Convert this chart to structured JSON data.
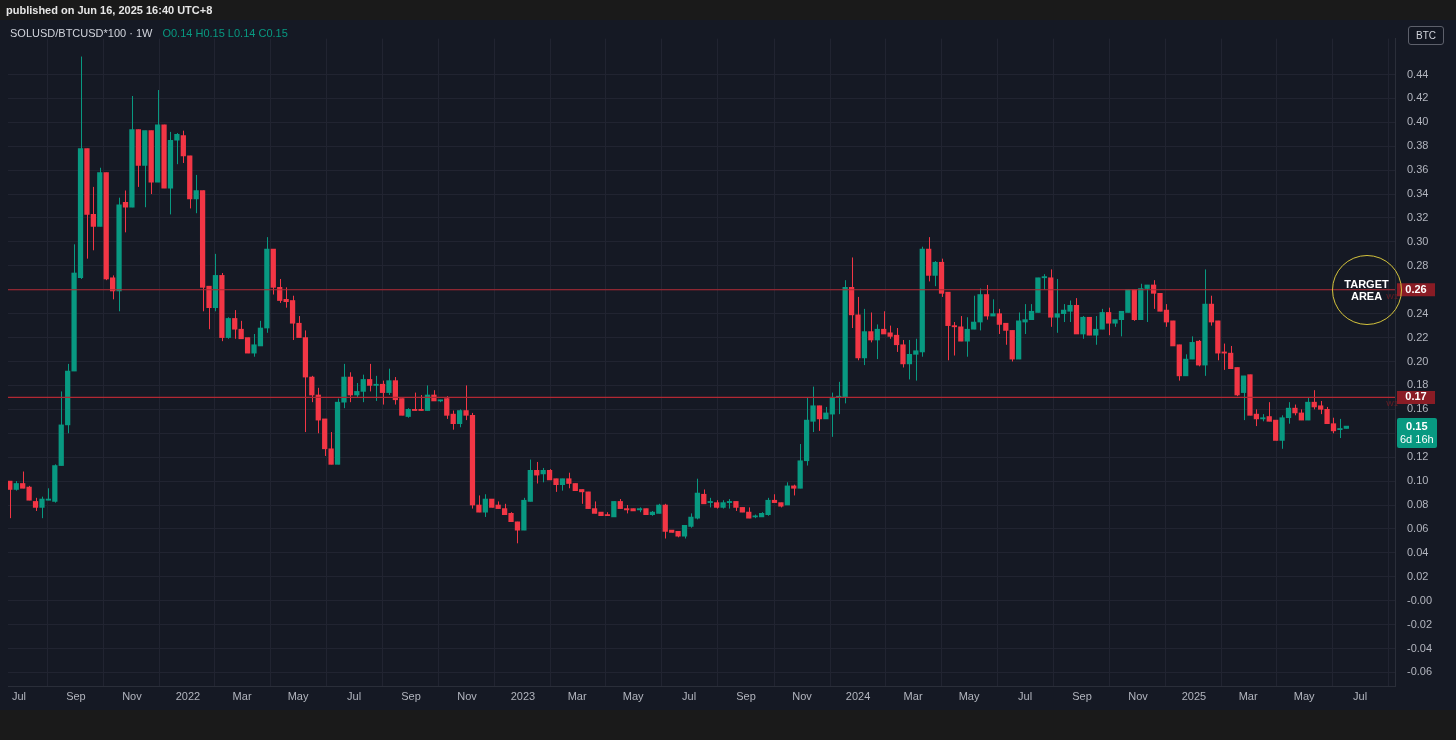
{
  "chart_data": {
    "type": "candlestick",
    "title": "SOLUSD/BTCUSD*100 · 1W",
    "subtitle": "O0.14 H0.15 L0.14 C0.15",
    "annotations": [
      "published on Jun 16, 2025 16:40 UTC+8",
      "BTC",
      "0.15",
      "6d 16h",
      {
        "text": "TARGET AREA",
        "x": "2025-07-08",
        "y": 0.26
      },
      {
        "text": "W1",
        "x": "2025-08-05",
        "y": 0.26
      },
      {
        "text": "W1",
        "x": "2025-08-05",
        "y": 0.17
      }
    ],
    "x": [
      "2021-06-21",
      "2021-06-28",
      "2021-07-05",
      "2021-07-12",
      "2021-07-19",
      "2021-07-26",
      "2021-08-02",
      "2021-08-09",
      "2021-08-16",
      "2021-08-23",
      "2021-08-30",
      "2021-09-06",
      "2021-09-13",
      "2021-09-20",
      "2021-09-27",
      "2021-10-04",
      "2021-10-11",
      "2021-10-18",
      "2021-10-25",
      "2021-11-01",
      "2021-11-08",
      "2021-11-15",
      "2021-11-22",
      "2021-11-29",
      "2021-12-06",
      "2021-12-13",
      "2021-12-20",
      "2021-12-27",
      "2022-01-03",
      "2022-01-10",
      "2022-01-17",
      "2022-01-24",
      "2022-01-31",
      "2022-02-07",
      "2022-02-14",
      "2022-02-21",
      "2022-02-28",
      "2022-03-07",
      "2022-03-14",
      "2022-03-21",
      "2022-03-28",
      "2022-04-04",
      "2022-04-11",
      "2022-04-18",
      "2022-04-25",
      "2022-05-02",
      "2022-05-09",
      "2022-05-16",
      "2022-05-23",
      "2022-05-30",
      "2022-06-06",
      "2022-06-13",
      "2022-06-20",
      "2022-06-27",
      "2022-07-04",
      "2022-07-11",
      "2022-07-18",
      "2022-07-25",
      "2022-08-01",
      "2022-08-08",
      "2022-08-15",
      "2022-08-22",
      "2022-08-29",
      "2022-09-05",
      "2022-09-12",
      "2022-09-19",
      "2022-09-26",
      "2022-10-03",
      "2022-10-10",
      "2022-10-17",
      "2022-10-24",
      "2022-10-31",
      "2022-11-07",
      "2022-11-14",
      "2022-11-21",
      "2022-11-28",
      "2022-12-05",
      "2022-12-12",
      "2022-12-19",
      "2022-12-26",
      "2023-01-02",
      "2023-01-09",
      "2023-01-16",
      "2023-01-23",
      "2023-01-30",
      "2023-02-06",
      "2023-02-13",
      "2023-02-20",
      "2023-02-27",
      "2023-03-06",
      "2023-03-13",
      "2023-03-20",
      "2023-03-27",
      "2023-04-03",
      "2023-04-10",
      "2023-04-17",
      "2023-04-24",
      "2023-05-01",
      "2023-05-08",
      "2023-05-15",
      "2023-05-22",
      "2023-05-29",
      "2023-06-05",
      "2023-06-12",
      "2023-06-19",
      "2023-06-26",
      "2023-07-03",
      "2023-07-10",
      "2023-07-17",
      "2023-07-24",
      "2023-07-31",
      "2023-08-07",
      "2023-08-14",
      "2023-08-21",
      "2023-08-28",
      "2023-09-04",
      "2023-09-11",
      "2023-09-18",
      "2023-09-25",
      "2023-10-02",
      "2023-10-09",
      "2023-10-16",
      "2023-10-23",
      "2023-10-30",
      "2023-11-06",
      "2023-11-13",
      "2023-11-20",
      "2023-11-27",
      "2023-12-04",
      "2023-12-11",
      "2023-12-18",
      "2023-12-25",
      "2024-01-01",
      "2024-01-08",
      "2024-01-15",
      "2024-01-22",
      "2024-01-29",
      "2024-02-05",
      "2024-02-12",
      "2024-02-19",
      "2024-02-26",
      "2024-03-04",
      "2024-03-11",
      "2024-03-18",
      "2024-03-25",
      "2024-04-01",
      "2024-04-08",
      "2024-04-15",
      "2024-04-22",
      "2024-04-29",
      "2024-05-06",
      "2024-05-13",
      "2024-05-20",
      "2024-05-27",
      "2024-06-03",
      "2024-06-10",
      "2024-06-17",
      "2024-06-24",
      "2024-07-01",
      "2024-07-08",
      "2024-07-15",
      "2024-07-22",
      "2024-07-29",
      "2024-08-05",
      "2024-08-12",
      "2024-08-19",
      "2024-08-26",
      "2024-09-02",
      "2024-09-09",
      "2024-09-16",
      "2024-09-23",
      "2024-09-30",
      "2024-10-07",
      "2024-10-14",
      "2024-10-21",
      "2024-10-28",
      "2024-11-04",
      "2024-11-11",
      "2024-11-18",
      "2024-11-25",
      "2024-12-02",
      "2024-12-09",
      "2024-12-16",
      "2024-12-23",
      "2024-12-30",
      "2025-01-06",
      "2025-01-13",
      "2025-01-20",
      "2025-01-27",
      "2025-02-03",
      "2025-02-10",
      "2025-02-17",
      "2025-02-24",
      "2025-03-03",
      "2025-03-10",
      "2025-03-17",
      "2025-03-24",
      "2025-03-31",
      "2025-04-07",
      "2025-04-14",
      "2025-04-21",
      "2025-04-28",
      "2025-05-05",
      "2025-05-12",
      "2025-05-19",
      "2025-05-26",
      "2025-06-02",
      "2025-06-09",
      "2025-06-16"
    ],
    "ohlc": [
      [
        0.1,
        0.1,
        0.069,
        0.093
      ],
      [
        0.093,
        0.1,
        0.092,
        0.098
      ],
      [
        0.098,
        0.108,
        0.094,
        0.094
      ],
      [
        0.095,
        0.096,
        0.084,
        0.084
      ],
      [
        0.083,
        0.086,
        0.075,
        0.078
      ],
      [
        0.078,
        0.087,
        0.069,
        0.085
      ],
      [
        0.084,
        0.094,
        0.084,
        0.085
      ],
      [
        0.083,
        0.114,
        0.082,
        0.113
      ],
      [
        0.113,
        0.175,
        0.113,
        0.147
      ],
      [
        0.147,
        0.198,
        0.14,
        0.192
      ],
      [
        0.192,
        0.298,
        0.192,
        0.274
      ],
      [
        0.27,
        0.455,
        0.269,
        0.378
      ],
      [
        0.378,
        0.378,
        0.286,
        0.323
      ],
      [
        0.323,
        0.346,
        0.293,
        0.313
      ],
      [
        0.313,
        0.362,
        0.313,
        0.358
      ],
      [
        0.358,
        0.358,
        0.268,
        0.269
      ],
      [
        0.27,
        0.272,
        0.252,
        0.259
      ],
      [
        0.259,
        0.337,
        0.242,
        0.331
      ],
      [
        0.333,
        0.343,
        0.308,
        0.329
      ],
      [
        0.329,
        0.422,
        0.329,
        0.394
      ],
      [
        0.394,
        0.394,
        0.346,
        0.364
      ],
      [
        0.364,
        0.393,
        0.329,
        0.393
      ],
      [
        0.393,
        0.393,
        0.34,
        0.35
      ],
      [
        0.35,
        0.427,
        0.35,
        0.398
      ],
      [
        0.398,
        0.398,
        0.345,
        0.345
      ],
      [
        0.345,
        0.392,
        0.323,
        0.385
      ],
      [
        0.385,
        0.391,
        0.365,
        0.39
      ],
      [
        0.389,
        0.393,
        0.366,
        0.372
      ],
      [
        0.372,
        0.372,
        0.328,
        0.336
      ],
      [
        0.336,
        0.356,
        0.324,
        0.343
      ],
      [
        0.343,
        0.343,
        0.242,
        0.262
      ],
      [
        0.263,
        0.263,
        0.227,
        0.245
      ],
      [
        0.245,
        0.29,
        0.242,
        0.272
      ],
      [
        0.272,
        0.274,
        0.217,
        0.22
      ],
      [
        0.22,
        0.237,
        0.219,
        0.236
      ],
      [
        0.236,
        0.243,
        0.219,
        0.227
      ],
      [
        0.227,
        0.234,
        0.219,
        0.219
      ],
      [
        0.22,
        0.22,
        0.207,
        0.207
      ],
      [
        0.207,
        0.223,
        0.204,
        0.214
      ],
      [
        0.213,
        0.234,
        0.213,
        0.228
      ],
      [
        0.228,
        0.304,
        0.224,
        0.294
      ],
      [
        0.294,
        0.294,
        0.256,
        0.262
      ],
      [
        0.262,
        0.269,
        0.249,
        0.251
      ],
      [
        0.252,
        0.262,
        0.245,
        0.25
      ],
      [
        0.251,
        0.255,
        0.218,
        0.232
      ],
      [
        0.232,
        0.238,
        0.22,
        0.22
      ],
      [
        0.22,
        0.226,
        0.141,
        0.187
      ],
      [
        0.187,
        0.188,
        0.166,
        0.172
      ],
      [
        0.172,
        0.178,
        0.14,
        0.151
      ],
      [
        0.152,
        0.152,
        0.121,
        0.127
      ],
      [
        0.127,
        0.141,
        0.114,
        0.114
      ],
      [
        0.114,
        0.169,
        0.114,
        0.166
      ],
      [
        0.166,
        0.198,
        0.161,
        0.187
      ],
      [
        0.187,
        0.191,
        0.166,
        0.172
      ],
      [
        0.172,
        0.182,
        0.17,
        0.175
      ],
      [
        0.175,
        0.189,
        0.166,
        0.185
      ],
      [
        0.185,
        0.198,
        0.175,
        0.18
      ],
      [
        0.18,
        0.188,
        0.167,
        0.181
      ],
      [
        0.181,
        0.184,
        0.164,
        0.174
      ],
      [
        0.174,
        0.194,
        0.172,
        0.184
      ],
      [
        0.184,
        0.187,
        0.164,
        0.168
      ],
      [
        0.169,
        0.169,
        0.155,
        0.155
      ],
      [
        0.154,
        0.161,
        0.153,
        0.16
      ],
      [
        0.16,
        0.174,
        0.159,
        0.159
      ],
      [
        0.16,
        0.172,
        0.159,
        0.159
      ],
      [
        0.159,
        0.18,
        0.159,
        0.172
      ],
      [
        0.172,
        0.176,
        0.167,
        0.167
      ],
      [
        0.167,
        0.168,
        0.166,
        0.168
      ],
      [
        0.169,
        0.171,
        0.152,
        0.155
      ],
      [
        0.156,
        0.159,
        0.143,
        0.148
      ],
      [
        0.148,
        0.16,
        0.145,
        0.159
      ],
      [
        0.159,
        0.18,
        0.151,
        0.155
      ],
      [
        0.155,
        0.157,
        0.077,
        0.08
      ],
      [
        0.08,
        0.088,
        0.074,
        0.074
      ],
      [
        0.074,
        0.089,
        0.07,
        0.085
      ],
      [
        0.085,
        0.085,
        0.078,
        0.078
      ],
      [
        0.08,
        0.083,
        0.077,
        0.077
      ],
      [
        0.077,
        0.081,
        0.072,
        0.072
      ],
      [
        0.073,
        0.074,
        0.066,
        0.066
      ],
      [
        0.066,
        0.066,
        0.048,
        0.059
      ],
      [
        0.059,
        0.086,
        0.059,
        0.084
      ],
      [
        0.083,
        0.118,
        0.083,
        0.109
      ],
      [
        0.109,
        0.116,
        0.098,
        0.105
      ],
      [
        0.106,
        0.111,
        0.099,
        0.109
      ],
      [
        0.109,
        0.11,
        0.101,
        0.101
      ],
      [
        0.102,
        0.102,
        0.091,
        0.097
      ],
      [
        0.097,
        0.102,
        0.092,
        0.102
      ],
      [
        0.102,
        0.107,
        0.094,
        0.098
      ],
      [
        0.098,
        0.098,
        0.092,
        0.092
      ],
      [
        0.093,
        0.093,
        0.081,
        0.091
      ],
      [
        0.091,
        0.091,
        0.077,
        0.077
      ],
      [
        0.077,
        0.083,
        0.073,
        0.073
      ],
      [
        0.074,
        0.074,
        0.071,
        0.071
      ],
      [
        0.072,
        0.074,
        0.071,
        0.071
      ],
      [
        0.07,
        0.083,
        0.07,
        0.083
      ],
      [
        0.083,
        0.085,
        0.077,
        0.077
      ],
      [
        0.077,
        0.08,
        0.073,
        0.076
      ],
      [
        0.077,
        0.077,
        0.075,
        0.075
      ],
      [
        0.076,
        0.078,
        0.074,
        0.077
      ],
      [
        0.077,
        0.077,
        0.072,
        0.072
      ],
      [
        0.072,
        0.075,
        0.071,
        0.074
      ],
      [
        0.073,
        0.081,
        0.073,
        0.08
      ],
      [
        0.08,
        0.081,
        0.052,
        0.058
      ],
      [
        0.059,
        0.059,
        0.057,
        0.057
      ],
      [
        0.058,
        0.058,
        0.053,
        0.054
      ],
      [
        0.054,
        0.063,
        0.052,
        0.063
      ],
      [
        0.062,
        0.073,
        0.061,
        0.07
      ],
      [
        0.069,
        0.102,
        0.068,
        0.09
      ],
      [
        0.089,
        0.093,
        0.081,
        0.081
      ],
      [
        0.082,
        0.086,
        0.078,
        0.083
      ],
      [
        0.082,
        0.084,
        0.077,
        0.078
      ],
      [
        0.078,
        0.084,
        0.077,
        0.082
      ],
      [
        0.082,
        0.085,
        0.077,
        0.083
      ],
      [
        0.083,
        0.083,
        0.075,
        0.078
      ],
      [
        0.078,
        0.078,
        0.074,
        0.074
      ],
      [
        0.074,
        0.078,
        0.069,
        0.069
      ],
      [
        0.07,
        0.072,
        0.069,
        0.071
      ],
      [
        0.07,
        0.074,
        0.07,
        0.073
      ],
      [
        0.072,
        0.086,
        0.071,
        0.084
      ],
      [
        0.084,
        0.089,
        0.082,
        0.082
      ],
      [
        0.082,
        0.082,
        0.078,
        0.079
      ],
      [
        0.08,
        0.099,
        0.08,
        0.096
      ],
      [
        0.096,
        0.097,
        0.088,
        0.094
      ],
      [
        0.094,
        0.131,
        0.094,
        0.117
      ],
      [
        0.117,
        0.17,
        0.113,
        0.151
      ],
      [
        0.15,
        0.179,
        0.141,
        0.163
      ],
      [
        0.163,
        0.163,
        0.142,
        0.152
      ],
      [
        0.152,
        0.162,
        0.152,
        0.157
      ],
      [
        0.156,
        0.174,
        0.137,
        0.17
      ],
      [
        0.17,
        0.183,
        0.156,
        0.171
      ],
      [
        0.17,
        0.268,
        0.165,
        0.262
      ],
      [
        0.262,
        0.287,
        0.228,
        0.239
      ],
      [
        0.239,
        0.254,
        0.201,
        0.203
      ],
      [
        0.203,
        0.244,
        0.197,
        0.225
      ],
      [
        0.225,
        0.241,
        0.216,
        0.218
      ],
      [
        0.218,
        0.231,
        0.202,
        0.227
      ],
      [
        0.227,
        0.242,
        0.223,
        0.223
      ],
      [
        0.224,
        0.23,
        0.219,
        0.221
      ],
      [
        0.222,
        0.228,
        0.208,
        0.214
      ],
      [
        0.214,
        0.218,
        0.195,
        0.198
      ],
      [
        0.198,
        0.218,
        0.185,
        0.206
      ],
      [
        0.206,
        0.219,
        0.184,
        0.209
      ],
      [
        0.208,
        0.296,
        0.204,
        0.294
      ],
      [
        0.294,
        0.304,
        0.267,
        0.272
      ],
      [
        0.272,
        0.284,
        0.263,
        0.283
      ],
      [
        0.283,
        0.286,
        0.254,
        0.257
      ],
      [
        0.258,
        0.258,
        0.201,
        0.23
      ],
      [
        0.23,
        0.233,
        0.205,
        0.229
      ],
      [
        0.229,
        0.238,
        0.217,
        0.217
      ],
      [
        0.217,
        0.237,
        0.204,
        0.227
      ],
      [
        0.227,
        0.255,
        0.227,
        0.233
      ],
      [
        0.233,
        0.261,
        0.226,
        0.256
      ],
      [
        0.256,
        0.264,
        0.235,
        0.238
      ],
      [
        0.238,
        0.252,
        0.238,
        0.24
      ],
      [
        0.24,
        0.244,
        0.223,
        0.231
      ],
      [
        0.232,
        0.232,
        0.214,
        0.226
      ],
      [
        0.226,
        0.226,
        0.2,
        0.202
      ],
      [
        0.202,
        0.241,
        0.202,
        0.234
      ],
      [
        0.233,
        0.248,
        0.223,
        0.235
      ],
      [
        0.235,
        0.248,
        0.235,
        0.242
      ],
      [
        0.241,
        0.27,
        0.241,
        0.27
      ],
      [
        0.27,
        0.273,
        0.26,
        0.271
      ],
      [
        0.27,
        0.277,
        0.229,
        0.237
      ],
      [
        0.237,
        0.269,
        0.224,
        0.24
      ],
      [
        0.24,
        0.248,
        0.233,
        0.243
      ],
      [
        0.242,
        0.251,
        0.233,
        0.247
      ],
      [
        0.247,
        0.253,
        0.223,
        0.223
      ],
      [
        0.223,
        0.238,
        0.219,
        0.237
      ],
      [
        0.237,
        0.237,
        0.222,
        0.222
      ],
      [
        0.222,
        0.238,
        0.214,
        0.227
      ],
      [
        0.227,
        0.244,
        0.227,
        0.241
      ],
      [
        0.241,
        0.245,
        0.222,
        0.232
      ],
      [
        0.232,
        0.235,
        0.229,
        0.235
      ],
      [
        0.235,
        0.242,
        0.221,
        0.242
      ],
      [
        0.241,
        0.26,
        0.241,
        0.26
      ],
      [
        0.26,
        0.26,
        0.234,
        0.235
      ],
      [
        0.235,
        0.265,
        0.235,
        0.261
      ],
      [
        0.261,
        0.264,
        0.233,
        0.264
      ],
      [
        0.264,
        0.268,
        0.244,
        0.257
      ],
      [
        0.257,
        0.257,
        0.242,
        0.242
      ],
      [
        0.243,
        0.248,
        0.229,
        0.233
      ],
      [
        0.234,
        0.234,
        0.213,
        0.213
      ],
      [
        0.214,
        0.214,
        0.184,
        0.188
      ],
      [
        0.188,
        0.206,
        0.188,
        0.202
      ],
      [
        0.202,
        0.221,
        0.202,
        0.216
      ],
      [
        0.217,
        0.218,
        0.196,
        0.197
      ],
      [
        0.197,
        0.277,
        0.188,
        0.248
      ],
      [
        0.248,
        0.255,
        0.23,
        0.233
      ],
      [
        0.234,
        0.234,
        0.201,
        0.207
      ],
      [
        0.208,
        0.215,
        0.193,
        0.207
      ],
      [
        0.207,
        0.213,
        0.194,
        0.194
      ],
      [
        0.195,
        0.195,
        0.171,
        0.172
      ],
      [
        0.174,
        0.188,
        0.151,
        0.188
      ],
      [
        0.189,
        0.189,
        0.155,
        0.155
      ],
      [
        0.156,
        0.16,
        0.146,
        0.152
      ],
      [
        0.152,
        0.156,
        0.15,
        0.153
      ],
      [
        0.154,
        0.166,
        0.15,
        0.15
      ],
      [
        0.151,
        0.151,
        0.134,
        0.134
      ],
      [
        0.134,
        0.155,
        0.127,
        0.153
      ],
      [
        0.153,
        0.166,
        0.148,
        0.161
      ],
      [
        0.161,
        0.164,
        0.155,
        0.157
      ],
      [
        0.157,
        0.16,
        0.151,
        0.151
      ],
      [
        0.151,
        0.17,
        0.151,
        0.166
      ],
      [
        0.166,
        0.176,
        0.16,
        0.162
      ],
      [
        0.163,
        0.167,
        0.156,
        0.16
      ],
      [
        0.16,
        0.162,
        0.148,
        0.148
      ],
      [
        0.148,
        0.153,
        0.14,
        0.142
      ],
      [
        0.143,
        0.152,
        0.136,
        0.144
      ],
      [
        0.144,
        0.146,
        0.144,
        0.146
      ]
    ],
    "colors": [
      "#f23645",
      "#089981",
      "#f23645",
      "#f23645",
      "#f23645",
      "#089981",
      "#089981",
      "#089981",
      "#089981",
      "#089981",
      "#089981",
      "#089981",
      "#f23645",
      "#f23645",
      "#089981",
      "#f23645",
      "#f23645",
      "#089981",
      "#f23645",
      "#089981",
      "#f23645",
      "#089981",
      "#f23645",
      "#089981",
      "#f23645",
      "#089981",
      "#089981",
      "#f23645",
      "#f23645",
      "#089981",
      "#f23645",
      "#f23645",
      "#089981",
      "#f23645",
      "#089981",
      "#f23645",
      "#f23645",
      "#f23645",
      "#089981",
      "#089981",
      "#089981",
      "#f23645",
      "#f23645",
      "#f23645",
      "#f23645",
      "#f23645",
      "#f23645",
      "#f23645",
      "#f23645",
      "#f23645",
      "#f23645",
      "#089981",
      "#089981",
      "#f23645",
      "#089981",
      "#089981",
      "#f23645",
      "#089981",
      "#f23645",
      "#089981",
      "#f23645",
      "#f23645",
      "#089981",
      "#f23645",
      "#f23645",
      "#089981",
      "#f23645",
      "#089981",
      "#f23645",
      "#f23645",
      "#089981",
      "#f23645",
      "#f23645",
      "#f23645",
      "#089981",
      "#f23645",
      "#f23645",
      "#f23645",
      "#f23645",
      "#f23645",
      "#089981",
      "#089981",
      "#f23645",
      "#089981",
      "#f23645",
      "#f23645",
      "#089981",
      "#f23645",
      "#f23645",
      "#f23645",
      "#f23645",
      "#f23645",
      "#f23645",
      "#f23645",
      "#089981",
      "#f23645",
      "#f23645",
      "#f23645",
      "#089981",
      "#f23645",
      "#089981",
      "#089981",
      "#f23645",
      "#f23645",
      "#f23645",
      "#089981",
      "#089981",
      "#089981",
      "#f23645",
      "#089981",
      "#f23645",
      "#089981",
      "#089981",
      "#f23645",
      "#f23645",
      "#f23645",
      "#089981",
      "#089981",
      "#089981",
      "#f23645",
      "#f23645",
      "#089981",
      "#f23645",
      "#089981",
      "#089981",
      "#089981",
      "#f23645",
      "#089981",
      "#089981",
      "#089981",
      "#089981",
      "#f23645",
      "#f23645",
      "#089981",
      "#f23645",
      "#089981",
      "#f23645",
      "#f23645",
      "#f23645",
      "#f23645",
      "#089981",
      "#089981",
      "#089981",
      "#f23645",
      "#089981",
      "#f23645",
      "#f23645",
      "#f23645",
      "#f23645",
      "#089981",
      "#089981",
      "#089981",
      "#f23645",
      "#089981",
      "#f23645",
      "#f23645",
      "#f23645",
      "#089981",
      "#089981",
      "#089981",
      "#089981",
      "#089981",
      "#f23645",
      "#089981",
      "#089981",
      "#089981",
      "#f23645",
      "#089981",
      "#f23645",
      "#089981",
      "#089981",
      "#f23645",
      "#089981",
      "#089981",
      "#089981",
      "#f23645",
      "#089981",
      "#089981",
      "#f23645",
      "#f23645",
      "#f23645",
      "#f23645",
      "#f23645",
      "#089981",
      "#089981",
      "#f23645",
      "#089981",
      "#f23645",
      "#f23645",
      "#f23645",
      "#f23645",
      "#f23645",
      "#089981",
      "#f23645",
      "#f23645",
      "#089981",
      "#f23645",
      "#f23645",
      "#089981",
      "#089981",
      "#f23645",
      "#f23645",
      "#089981",
      "#f23645",
      "#f23645",
      "#f23645",
      "#f23645",
      "#089981",
      "#089981"
    ],
    "xlim": [
      "2021-06-19",
      "2025-08-08"
    ],
    "xticks": [
      {
        "value": "2021-07-01",
        "label": "Jul"
      },
      {
        "value": "2021-09-01",
        "label": "Sep"
      },
      {
        "value": "2021-11-01",
        "label": "Nov"
      },
      {
        "value": "2022-01-01",
        "label": "2022"
      },
      {
        "value": "2022-03-01",
        "label": "Mar"
      },
      {
        "value": "2022-05-01",
        "label": "May"
      },
      {
        "value": "2022-07-01",
        "label": "Jul"
      },
      {
        "value": "2022-09-01",
        "label": "Sep"
      },
      {
        "value": "2022-11-01",
        "label": "Nov"
      },
      {
        "value": "2023-01-01",
        "label": "2023"
      },
      {
        "value": "2023-03-01",
        "label": "Mar"
      },
      {
        "value": "2023-05-01",
        "label": "May"
      },
      {
        "value": "2023-07-01",
        "label": "Jul"
      },
      {
        "value": "2023-09-01",
        "label": "Sep"
      },
      {
        "value": "2023-11-01",
        "label": "Nov"
      },
      {
        "value": "2024-01-01",
        "label": "2024"
      },
      {
        "value": "2024-03-01",
        "label": "Mar"
      },
      {
        "value": "2024-05-01",
        "label": "May"
      },
      {
        "value": "2024-07-01",
        "label": "Jul"
      },
      {
        "value": "2024-09-01",
        "label": "Sep"
      },
      {
        "value": "2024-11-01",
        "label": "Nov"
      },
      {
        "value": "2025-01-01",
        "label": "2025"
      },
      {
        "value": "2025-03-01",
        "label": "Mar"
      },
      {
        "value": "2025-05-01",
        "label": "May"
      },
      {
        "value": "2025-07-01",
        "label": "Jul"
      }
    ],
    "ylim": [
      -0.072,
      0.47
    ],
    "yticks": [
      {
        "value": -0.06,
        "label": "-0.06"
      },
      {
        "value": -0.04,
        "label": "-0.04"
      },
      {
        "value": -0.02,
        "label": "-0.02"
      },
      {
        "value": 0,
        "label": "-0.00"
      },
      {
        "value": 0.02,
        "label": "0.02"
      },
      {
        "value": 0.04,
        "label": "0.04"
      },
      {
        "value": 0.06,
        "label": "0.06"
      },
      {
        "value": 0.08,
        "label": "0.08"
      },
      {
        "value": 0.1,
        "label": "0.10"
      },
      {
        "value": 0.12,
        "label": "0.12"
      },
      {
        "value": 0.14,
        "label": null
      },
      {
        "value": 0.16,
        "label": "0.16"
      },
      {
        "value": 0.18,
        "label": "0.18"
      },
      {
        "value": 0.2,
        "label": "0.20"
      },
      {
        "value": 0.22,
        "label": "0.22"
      },
      {
        "value": 0.24,
        "label": "0.24"
      },
      {
        "value": 0.26,
        "label": "0.26"
      },
      {
        "value": 0.28,
        "label": "0.28"
      },
      {
        "value": 0.3,
        "label": "0.30"
      },
      {
        "value": 0.32,
        "label": "0.32"
      },
      {
        "value": 0.34,
        "label": "0.34"
      },
      {
        "value": 0.36,
        "label": "0.36"
      },
      {
        "value": 0.38,
        "label": "0.38"
      },
      {
        "value": 0.4,
        "label": "0.40"
      },
      {
        "value": 0.42,
        "label": "0.42"
      },
      {
        "value": 0.44,
        "label": "0.44"
      }
    ],
    "ref_lines": [
      {
        "axis": "y",
        "value": 0.26,
        "label": "0.26",
        "color": "#b22833"
      },
      {
        "axis": "y",
        "value": 0.17,
        "label": "0.17",
        "color": "#b22833"
      }
    ],
    "grid": true,
    "legend": false
  }
}
